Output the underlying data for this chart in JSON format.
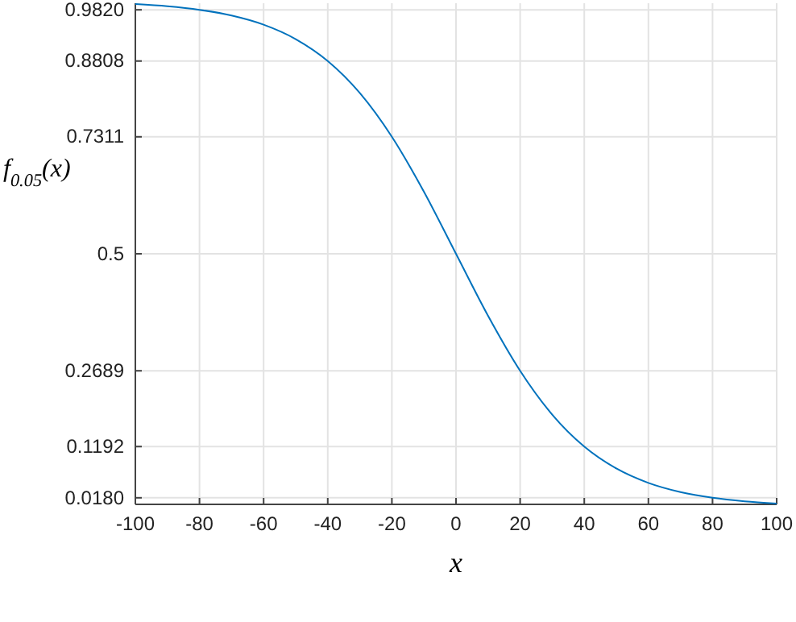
{
  "chart_data": {
    "type": "line",
    "xlabel": "x",
    "ylabel": "f$_{0.05}$(x)",
    "x": [
      -100,
      -90,
      -80,
      -70,
      -60,
      -50,
      -40,
      -30,
      -20,
      -10,
      0,
      10,
      20,
      30,
      40,
      50,
      60,
      70,
      80,
      90,
      100
    ],
    "series": [
      {
        "color": "#0072bd",
        "values": [
          0.9933,
          0.989,
          0.982,
          0.9707,
          0.9526,
          0.9241,
          0.8808,
          0.8176,
          0.7311,
          0.6225,
          0.5,
          0.3775,
          0.2689,
          0.1824,
          0.1192,
          0.0759,
          0.0474,
          0.0293,
          0.018,
          0.011,
          0.0067
        ]
      }
    ],
    "xlim": [
      -100,
      100
    ],
    "xticks": [
      -100,
      -80,
      -60,
      -40,
      -20,
      0,
      20,
      40,
      60,
      80,
      100
    ],
    "ylim": [
      0.005,
      0.995
    ],
    "yticks": [
      {
        "value": 0.018,
        "label": "0.0180"
      },
      0.1192,
      0.2689,
      0.5,
      0.7311,
      0.8808,
      {
        "value": 0.982,
        "label": "0.9820"
      }
    ],
    "grid": true,
    "marker": "none",
    "line_style": "solid"
  }
}
